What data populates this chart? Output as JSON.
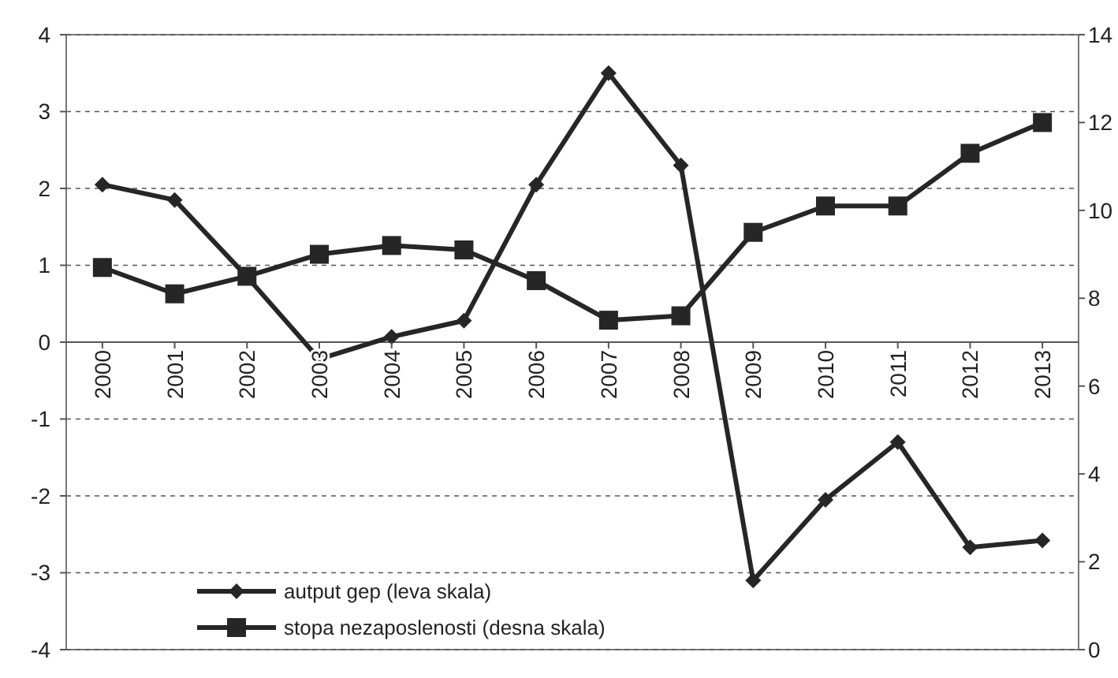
{
  "chart_data": {
    "type": "line",
    "categories": [
      "2000",
      "2001",
      "2002",
      "2003",
      "2004",
      "2005",
      "2006",
      "2007",
      "2008",
      "2009",
      "2010",
      "2011",
      "2012",
      "2013"
    ],
    "series": [
      {
        "name": "autput gep (leva skala)",
        "color": "#262626",
        "marker": "diamond",
        "values": [
          2.05,
          1.85,
          0.85,
          -0.22,
          0.07,
          0.28,
          2.05,
          3.5,
          2.3,
          -3.1,
          -2.05,
          -1.3,
          -2.67,
          -2.58
        ]
      },
      {
        "name": "stopa nezaposlenosti (desna skala)",
        "color": "#262626",
        "marker": "square",
        "axis": "y2",
        "values": [
          8.7,
          8.1,
          8.5,
          9.0,
          9.2,
          9.1,
          8.4,
          7.5,
          7.6,
          9.5,
          10.1,
          10.1,
          11.3,
          12.0
        ]
      }
    ],
    "ylim": [
      -4,
      4
    ],
    "yticks": [
      -4,
      -3,
      -2,
      -1,
      0,
      1,
      2,
      3,
      4
    ],
    "y2lim": [
      0,
      14
    ],
    "y2ticks": [
      0,
      2,
      4,
      6,
      8,
      10,
      12,
      14
    ],
    "grid": "y",
    "legend": "bottom left",
    "line_style": "solid"
  }
}
